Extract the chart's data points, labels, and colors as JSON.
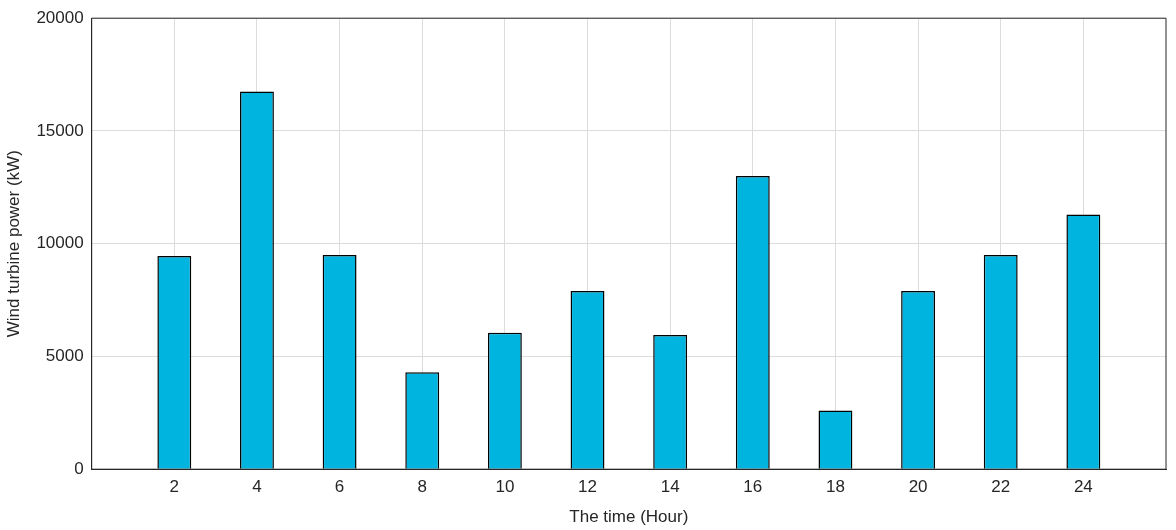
{
  "chart_data": {
    "type": "bar",
    "xlabel": "The time (Hour)",
    "ylabel": "Wind turbine power (kW)",
    "x": [
      2,
      4,
      6,
      8,
      10,
      12,
      14,
      16,
      18,
      20,
      22,
      24
    ],
    "values": [
      9450,
      16750,
      9500,
      4300,
      6050,
      7900,
      5950,
      13000,
      2600,
      7900,
      9500,
      11300
    ],
    "color": "#00b4e0",
    "xlim": [
      0,
      26
    ],
    "xticks": [
      2,
      4,
      6,
      8,
      10,
      12,
      14,
      16,
      18,
      20,
      22,
      24
    ],
    "ylim": [
      0,
      20000
    ],
    "yticks": [
      0,
      5000,
      10000,
      15000,
      20000
    ],
    "grid": true
  }
}
